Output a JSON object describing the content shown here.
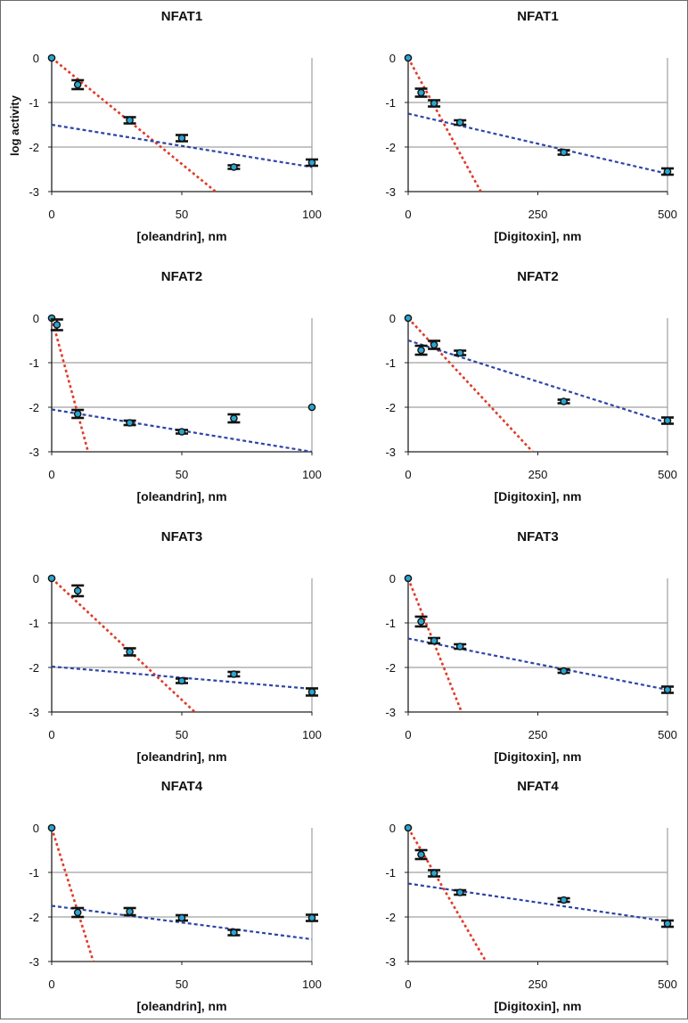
{
  "figure": {
    "ylabel": "log activity",
    "colors": {
      "points": "#2aa5cf",
      "point_outline": "#111111",
      "error_bars": "#111111",
      "fit_steep": "#e03a28",
      "fit_shallow": "#2e45a6",
      "gridline": "#a0a0a0",
      "axis": "#222222"
    }
  },
  "chart_data": [
    {
      "type": "scatter",
      "title": "NFAT1",
      "xlabel": "[oleandrin], nm",
      "ylabel": "log activity",
      "xlim": [
        0,
        100
      ],
      "ylim": [
        -3,
        0
      ],
      "xticks": [
        "0",
        "50",
        "100"
      ],
      "yticks": [
        "0",
        "-1",
        "-2",
        "-3"
      ],
      "grid": true,
      "points": {
        "x": [
          0,
          10,
          30,
          50,
          70,
          100
        ],
        "y": [
          0,
          -0.6,
          -1.4,
          -1.8,
          -2.45,
          -2.35
        ],
        "error": [
          0,
          0.1,
          0.07,
          0.07,
          0.04,
          0.07
        ]
      },
      "fit_lines": [
        {
          "name": "steep",
          "color": "#e03a28",
          "x": [
            0,
            63
          ],
          "y": [
            0,
            -3
          ]
        },
        {
          "name": "shallow",
          "color": "#2e45a6",
          "x": [
            0,
            100
          ],
          "y": [
            -1.5,
            -2.45
          ]
        }
      ]
    },
    {
      "type": "scatter",
      "title": "NFAT1",
      "xlabel": "[Digitoxin], nm",
      "ylabel": "",
      "xlim": [
        0,
        500
      ],
      "ylim": [
        -3,
        0
      ],
      "xticks": [
        "0",
        "250",
        "500"
      ],
      "yticks": [
        "0",
        "-1",
        "-2",
        "-3"
      ],
      "grid": true,
      "points": {
        "x": [
          0,
          25,
          50,
          100,
          300,
          500
        ],
        "y": [
          0,
          -0.78,
          -1.02,
          -1.45,
          -2.12,
          -2.55
        ],
        "error": [
          0,
          0.09,
          0.07,
          0.05,
          0.05,
          0.07
        ]
      },
      "fit_lines": [
        {
          "name": "steep",
          "color": "#e03a28",
          "x": [
            0,
            140
          ],
          "y": [
            0,
            -3
          ]
        },
        {
          "name": "shallow",
          "color": "#2e45a6",
          "x": [
            0,
            500
          ],
          "y": [
            -1.25,
            -2.6
          ]
        }
      ]
    },
    {
      "type": "scatter",
      "title": "NFAT2",
      "xlabel": "[oleandrin], nm",
      "ylabel": "",
      "xlim": [
        0,
        100
      ],
      "ylim": [
        -3,
        0
      ],
      "xticks": [
        "0",
        "50",
        "100"
      ],
      "yticks": [
        "0",
        "-1",
        "-2",
        "-3"
      ],
      "grid": true,
      "points": {
        "x": [
          0,
          2,
          10,
          30,
          50,
          70,
          100
        ],
        "y": [
          0,
          -0.15,
          -2.15,
          -2.35,
          -2.55,
          -2.25,
          -2.0
        ],
        "error": [
          0,
          0.12,
          0.09,
          0.05,
          0.04,
          0.09,
          0
        ]
      },
      "fit_lines": [
        {
          "name": "steep",
          "color": "#e03a28",
          "x": [
            0,
            14
          ],
          "y": [
            0,
            -3
          ]
        },
        {
          "name": "shallow",
          "color": "#2e45a6",
          "x": [
            0,
            100
          ],
          "y": [
            -2.05,
            -3.0
          ]
        }
      ]
    },
    {
      "type": "scatter",
      "title": "NFAT2",
      "xlabel": "[Digitoxin], nm",
      "ylabel": "",
      "xlim": [
        0,
        500
      ],
      "ylim": [
        -3,
        0
      ],
      "xticks": [
        "0",
        "250",
        "500"
      ],
      "yticks": [
        "0",
        "-1",
        "-2",
        "-3"
      ],
      "grid": true,
      "points": {
        "x": [
          0,
          25,
          50,
          100,
          300,
          500
        ],
        "y": [
          0,
          -0.72,
          -0.6,
          -0.78,
          -1.87,
          -2.3
        ],
        "error": [
          0,
          0.1,
          0.09,
          0.05,
          0.04,
          0.07
        ]
      },
      "fit_lines": [
        {
          "name": "steep",
          "color": "#e03a28",
          "x": [
            0,
            240
          ],
          "y": [
            0,
            -3
          ]
        },
        {
          "name": "shallow",
          "color": "#2e45a6",
          "x": [
            0,
            500
          ],
          "y": [
            -0.5,
            -2.35
          ]
        }
      ]
    },
    {
      "type": "scatter",
      "title": "NFAT3",
      "xlabel": "[oleandrin], nm",
      "ylabel": "",
      "xlim": [
        0,
        100
      ],
      "ylim": [
        -3,
        0
      ],
      "xticks": [
        "0",
        "50",
        "100"
      ],
      "yticks": [
        "0",
        "-1",
        "-2",
        "-3"
      ],
      "grid": true,
      "points": {
        "x": [
          0,
          10,
          30,
          50,
          70,
          100
        ],
        "y": [
          0,
          -0.28,
          -1.65,
          -2.3,
          -2.15,
          -2.55
        ],
        "error": [
          0,
          0.12,
          0.08,
          0.05,
          0.05,
          0.08
        ]
      },
      "fit_lines": [
        {
          "name": "steep",
          "color": "#e03a28",
          "x": [
            0,
            55
          ],
          "y": [
            0,
            -3
          ]
        },
        {
          "name": "shallow",
          "color": "#2e45a6",
          "x": [
            0,
            100
          ],
          "y": [
            -1.98,
            -2.48
          ]
        }
      ]
    },
    {
      "type": "scatter",
      "title": "NFAT3",
      "xlabel": "[Digitoxin], nm",
      "ylabel": "",
      "xlim": [
        0,
        500
      ],
      "ylim": [
        -3,
        0
      ],
      "xticks": [
        "0",
        "250",
        "500"
      ],
      "yticks": [
        "0",
        "-1",
        "-2",
        "-3"
      ],
      "grid": true,
      "points": {
        "x": [
          0,
          25,
          50,
          100,
          300,
          500
        ],
        "y": [
          0,
          -0.97,
          -1.4,
          -1.53,
          -2.08,
          -2.5
        ],
        "error": [
          0,
          0.11,
          0.06,
          0.05,
          0.04,
          0.07
        ]
      },
      "fit_lines": [
        {
          "name": "steep",
          "color": "#e03a28",
          "x": [
            0,
            103
          ],
          "y": [
            0,
            -3
          ]
        },
        {
          "name": "shallow",
          "color": "#2e45a6",
          "x": [
            0,
            500
          ],
          "y": [
            -1.35,
            -2.5
          ]
        }
      ]
    },
    {
      "type": "scatter",
      "title": "NFAT4",
      "xlabel": "[oleandrin], nm",
      "ylabel": "",
      "xlim": [
        0,
        100
      ],
      "ylim": [
        -3,
        0
      ],
      "xticks": [
        "0",
        "50",
        "100"
      ],
      "yticks": [
        "0",
        "-1",
        "-2",
        "-3"
      ],
      "grid": true,
      "points": {
        "x": [
          0,
          10,
          30,
          50,
          70,
          100
        ],
        "y": [
          0,
          -1.9,
          -1.88,
          -2.02,
          -2.35,
          -2.02
        ],
        "error": [
          0,
          0.1,
          0.08,
          0.06,
          0.06,
          0.07
        ]
      },
      "fit_lines": [
        {
          "name": "steep",
          "color": "#e03a28",
          "x": [
            0,
            16
          ],
          "y": [
            0,
            -3
          ]
        },
        {
          "name": "shallow",
          "color": "#2e45a6",
          "x": [
            0,
            100
          ],
          "y": [
            -1.75,
            -2.5
          ]
        }
      ]
    },
    {
      "type": "scatter",
      "title": "NFAT4",
      "xlabel": "[Digitoxin], nm",
      "ylabel": "",
      "xlim": [
        0,
        500
      ],
      "ylim": [
        -3,
        0
      ],
      "xticks": [
        "0",
        "250",
        "500"
      ],
      "yticks": [
        "0",
        "-1",
        "-2",
        "-3"
      ],
      "grid": true,
      "points": {
        "x": [
          0,
          25,
          50,
          100,
          300,
          500
        ],
        "y": [
          0,
          -0.6,
          -1.02,
          -1.45,
          -1.62,
          -2.15
        ],
        "error": [
          0,
          0.1,
          0.07,
          0.05,
          0.04,
          0.07
        ]
      },
      "fit_lines": [
        {
          "name": "steep",
          "color": "#e03a28",
          "x": [
            0,
            150
          ],
          "y": [
            0,
            -3
          ]
        },
        {
          "name": "shallow",
          "color": "#2e45a6",
          "x": [
            0,
            500
          ],
          "y": [
            -1.25,
            -2.1
          ]
        }
      ]
    }
  ]
}
